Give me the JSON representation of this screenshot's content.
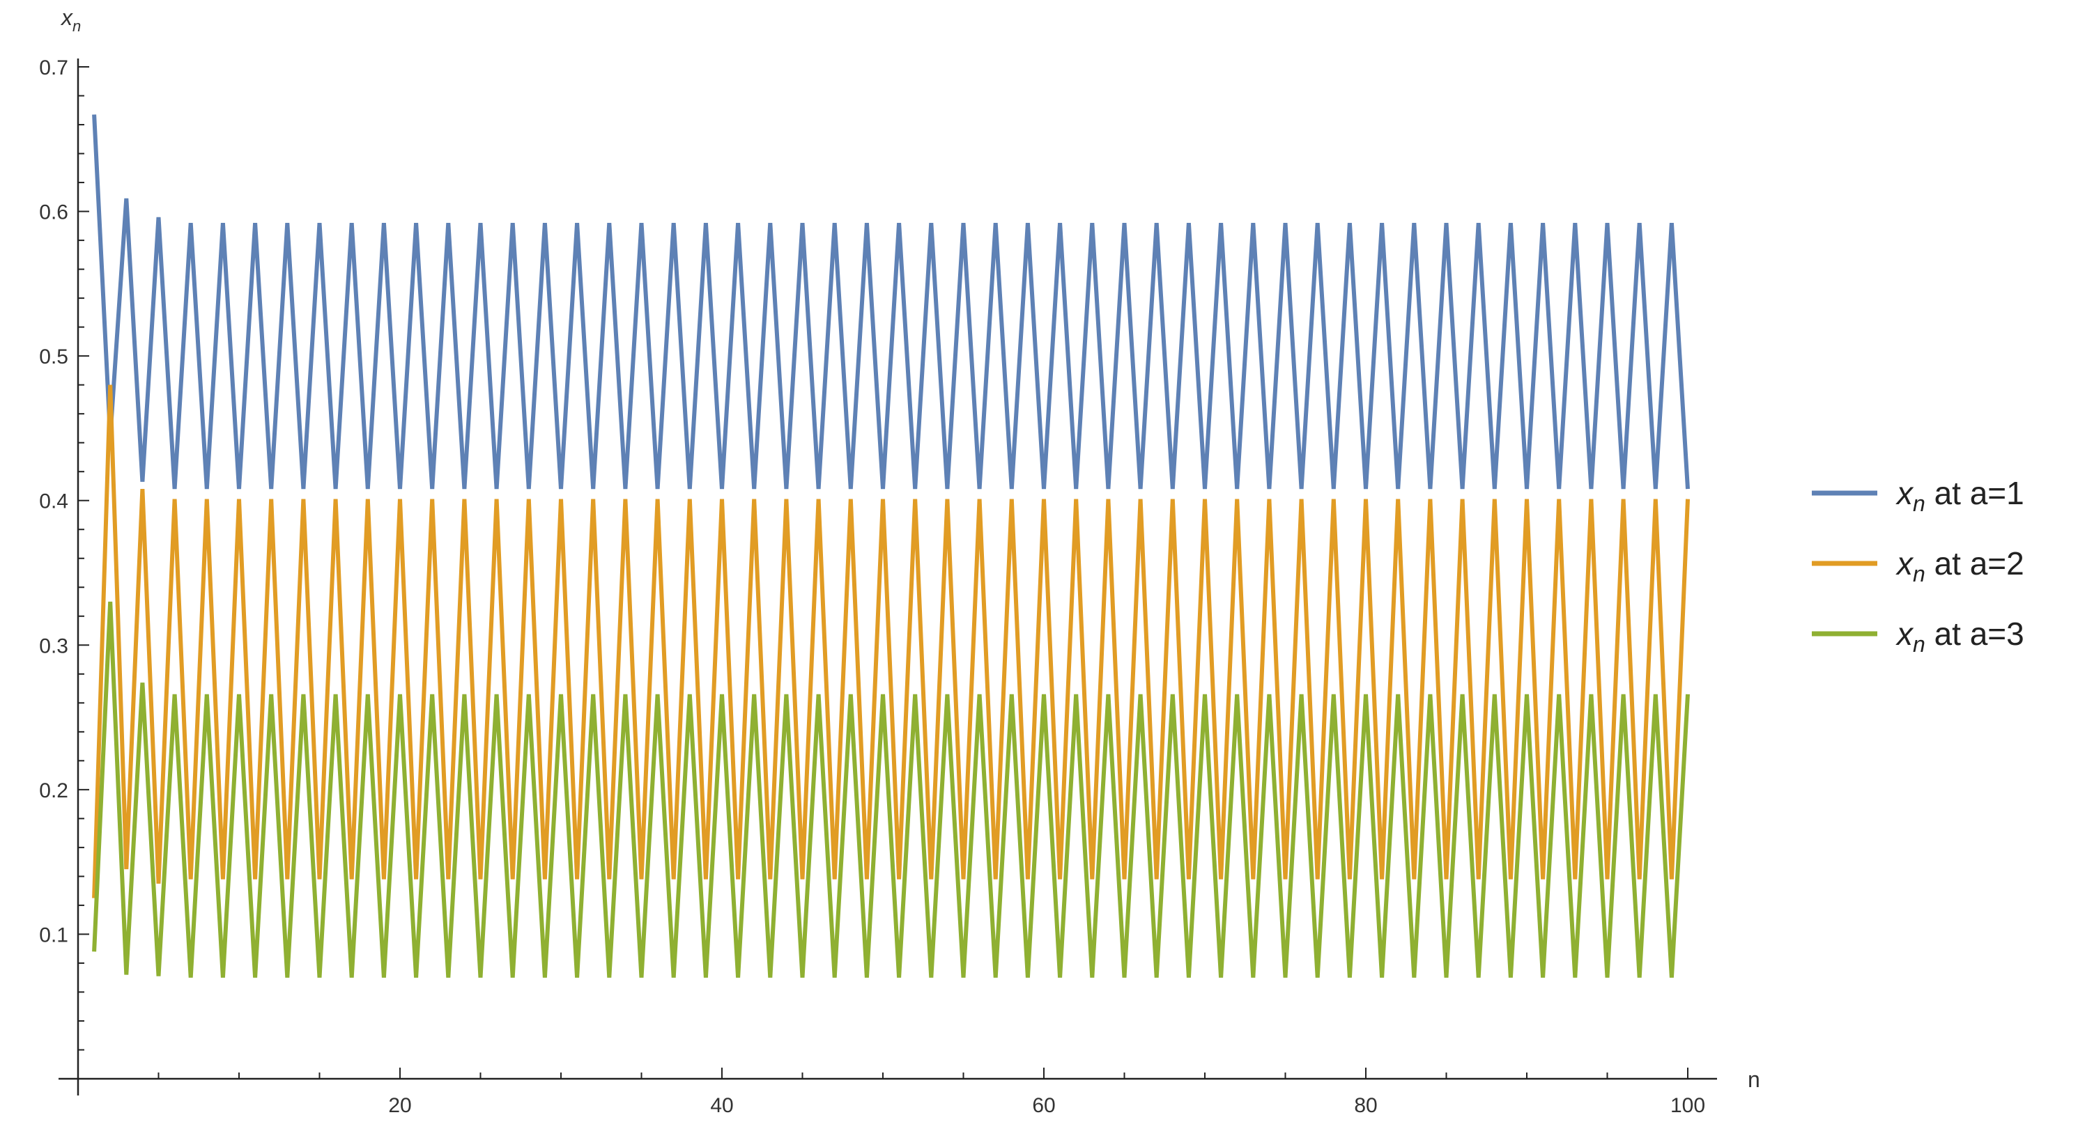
{
  "chart_data": {
    "type": "line",
    "title": "",
    "xlabel": "n",
    "ylabel_var": "x",
    "ylabel_sub": "n",
    "xlim": [
      0,
      100
    ],
    "ylim": [
      0,
      0.7
    ],
    "x_ticks": [
      20,
      40,
      60,
      80,
      100
    ],
    "x_tick_labels": [
      "20",
      "40",
      "60",
      "80",
      "100"
    ],
    "y_ticks": [
      0.1,
      0.2,
      0.3,
      0.4,
      0.5,
      0.6,
      0.7
    ],
    "y_tick_labels": [
      "0.1",
      "0.2",
      "0.3",
      "0.4",
      "0.5",
      "0.6",
      "0.7"
    ],
    "grid": false,
    "legend_position": "right",
    "series": [
      {
        "name_var": "x",
        "name_sub": "n",
        "name_rest": " at a=1",
        "color": "#5e81b5",
        "n_start": 1,
        "n_end": 100,
        "transient": [
          0.667,
          0.444,
          0.609,
          0.413,
          0.596
        ],
        "cycle": [
          0.408,
          0.592
        ]
      },
      {
        "name_var": "x",
        "name_sub": "n",
        "name_rest": " at a=2",
        "color": "#e19c24",
        "n_start": 1,
        "n_end": 100,
        "transient": [
          0.125,
          0.48,
          0.145,
          0.408,
          0.135
        ],
        "cycle": [
          0.401,
          0.138
        ]
      },
      {
        "name_var": "x",
        "name_sub": "n",
        "name_rest": " at a=3",
        "color": "#8fb032",
        "n_start": 1,
        "n_end": 100,
        "transient": [
          0.088,
          0.33,
          0.072,
          0.274,
          0.071
        ],
        "cycle": [
          0.266,
          0.07
        ]
      }
    ]
  }
}
